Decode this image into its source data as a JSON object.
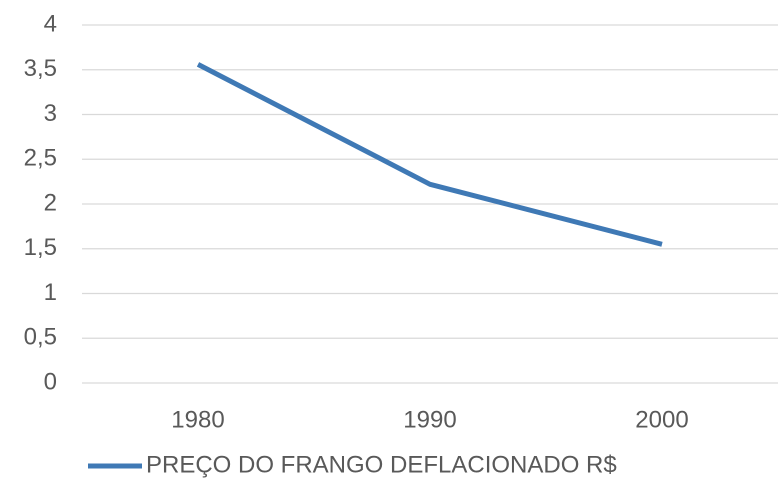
{
  "chart_data": {
    "type": "line",
    "categories": [
      "1980",
      "1990",
      "2000"
    ],
    "series": [
      {
        "name": "PREÇO DO FRANGO DEFLACIONADO R$",
        "color": "#3f79b5",
        "values": [
          3.56,
          2.22,
          1.55
        ]
      }
    ],
    "ylim": [
      0,
      4
    ],
    "yticks": [
      0,
      {
        "value": 0.5,
        "label": "0,5"
      },
      1,
      {
        "value": 1.5,
        "label": "1,5"
      },
      2,
      {
        "value": 2.5,
        "label": "2,5"
      },
      3,
      {
        "value": 3.5,
        "label": "3,5"
      },
      4
    ],
    "grid": true,
    "legend": "bottom"
  }
}
